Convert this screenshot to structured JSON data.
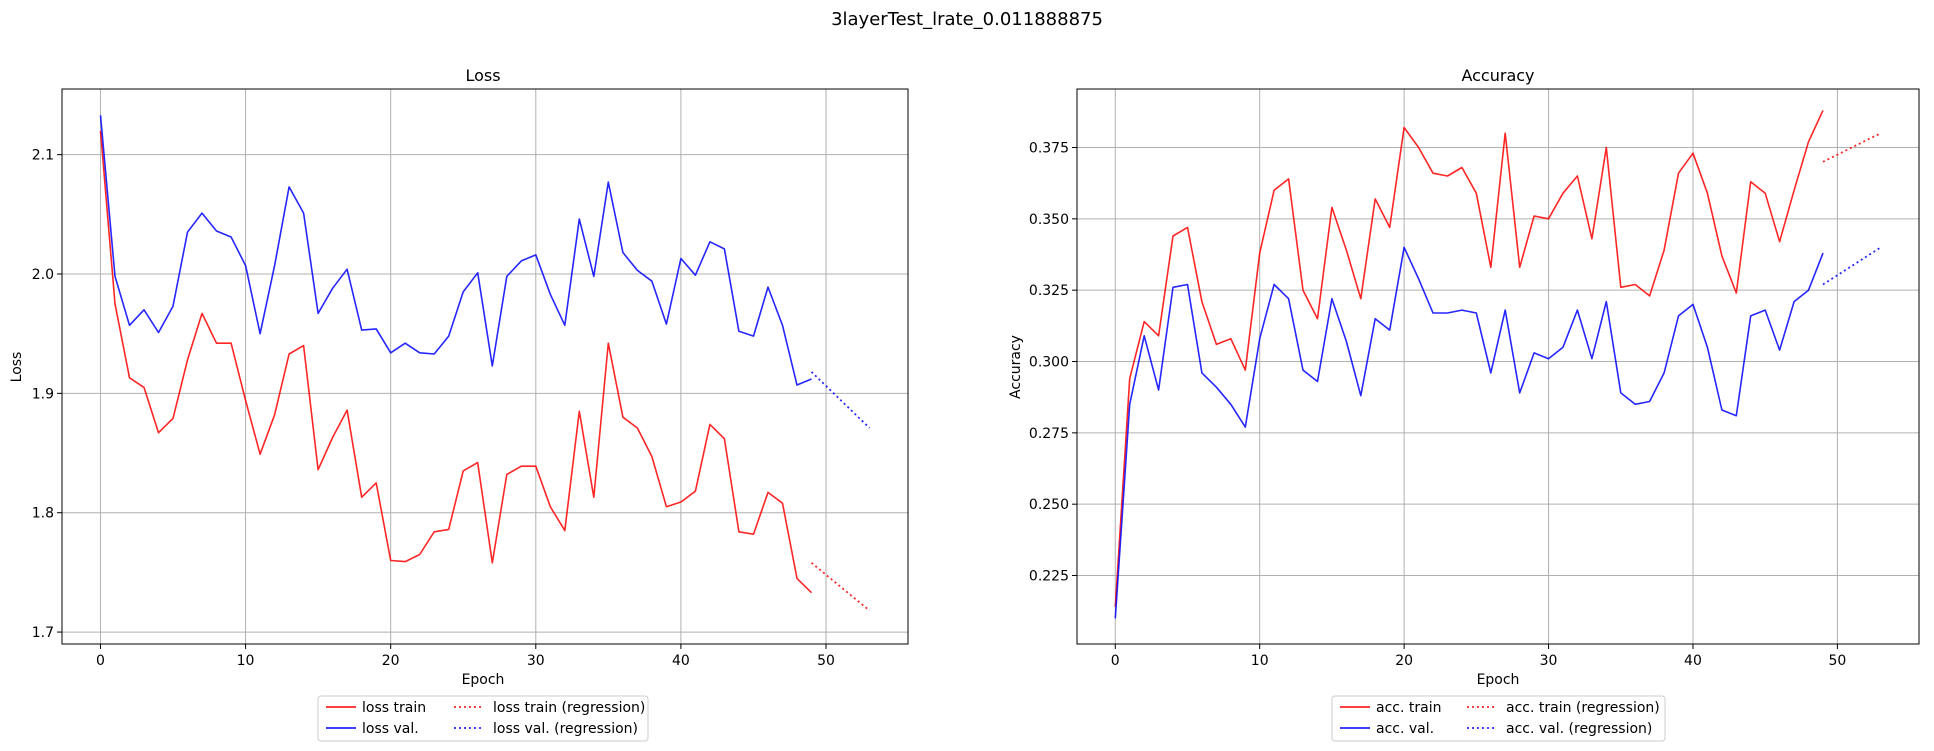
{
  "figure": {
    "suptitle": "3layerTest_lrate_0.011888875"
  },
  "colors": {
    "train": "#ff0000",
    "val": "#0000ff",
    "grid": "#b0b0b0"
  },
  "chart_data": [
    {
      "type": "line",
      "title": "Loss",
      "xlabel": "Epoch",
      "ylabel": "Loss",
      "xlim": [
        -2.65,
        55.65
      ],
      "ylim": [
        1.69,
        2.155
      ],
      "xticks": [
        0,
        10,
        20,
        30,
        40,
        50
      ],
      "yticks": [
        1.7,
        1.8,
        1.9,
        2.0,
        2.1
      ],
      "ytick_labels": [
        "1.7",
        "1.8",
        "1.9",
        "2.0",
        "2.1"
      ],
      "grid": true,
      "legend": {
        "placement": "bottom-center",
        "ncol": 2
      },
      "series": [
        {
          "name": "loss train",
          "color": "#ff0000",
          "style": "solid",
          "x": [
            0,
            1,
            2,
            3,
            4,
            5,
            6,
            7,
            8,
            9,
            10,
            11,
            12,
            13,
            14,
            15,
            16,
            17,
            18,
            19,
            20,
            21,
            22,
            23,
            24,
            25,
            26,
            27,
            28,
            29,
            30,
            31,
            32,
            33,
            34,
            35,
            36,
            37,
            38,
            39,
            40,
            41,
            42,
            43,
            44,
            45,
            46,
            47,
            48,
            49
          ],
          "y": [
            2.12,
            1.975,
            1.913,
            1.905,
            1.867,
            1.879,
            1.928,
            1.967,
            1.942,
            1.942,
            1.894,
            1.849,
            1.882,
            1.933,
            1.94,
            1.836,
            1.863,
            1.886,
            1.813,
            1.825,
            1.76,
            1.759,
            1.765,
            1.784,
            1.786,
            1.835,
            1.842,
            1.758,
            1.832,
            1.839,
            1.839,
            1.805,
            1.785,
            1.885,
            1.813,
            1.942,
            1.88,
            1.871,
            1.847,
            1.805,
            1.809,
            1.818,
            1.874,
            1.862,
            1.784,
            1.782,
            1.817,
            1.808,
            1.745,
            1.733
          ]
        },
        {
          "name": "loss val.",
          "color": "#0000ff",
          "style": "solid",
          "x": [
            0,
            1,
            2,
            3,
            4,
            5,
            6,
            7,
            8,
            9,
            10,
            11,
            12,
            13,
            14,
            15,
            16,
            17,
            18,
            19,
            20,
            21,
            22,
            23,
            24,
            25,
            26,
            27,
            28,
            29,
            30,
            31,
            32,
            33,
            34,
            35,
            36,
            37,
            38,
            39,
            40,
            41,
            42,
            43,
            44,
            45,
            46,
            47,
            48,
            49
          ],
          "y": [
            2.133,
            1.998,
            1.957,
            1.97,
            1.951,
            1.973,
            2.035,
            2.051,
            2.036,
            2.031,
            2.007,
            1.95,
            2.007,
            2.073,
            2.051,
            1.967,
            1.988,
            2.004,
            1.953,
            1.954,
            1.934,
            1.942,
            1.934,
            1.933,
            1.948,
            1.985,
            2.001,
            1.923,
            1.998,
            2.011,
            2.016,
            1.983,
            1.957,
            2.046,
            1.998,
            2.077,
            2.018,
            2.003,
            1.994,
            1.958,
            2.013,
            1.999,
            2.027,
            2.021,
            1.952,
            1.948,
            1.989,
            1.957,
            1.907,
            1.912
          ]
        },
        {
          "name": "loss train (regression)",
          "color": "#ff0000",
          "style": "dotted",
          "x": [
            49,
            53
          ],
          "y": [
            1.758,
            1.718
          ]
        },
        {
          "name": "loss val. (regression)",
          "color": "#0000ff",
          "style": "dotted",
          "x": [
            49,
            53
          ],
          "y": [
            1.918,
            1.871
          ]
        }
      ]
    },
    {
      "type": "line",
      "title": "Accuracy",
      "xlabel": "Epoch",
      "ylabel": "Accuracy",
      "xlim": [
        -2.65,
        55.65
      ],
      "ylim": [
        0.201,
        0.3955
      ],
      "xticks": [
        0,
        10,
        20,
        30,
        40,
        50
      ],
      "yticks": [
        0.225,
        0.25,
        0.275,
        0.3,
        0.325,
        0.35,
        0.375
      ],
      "ytick_labels": [
        "0.225",
        "0.250",
        "0.275",
        "0.300",
        "0.325",
        "0.350",
        "0.375"
      ],
      "grid": true,
      "legend": {
        "placement": "bottom-center",
        "ncol": 2
      },
      "series": [
        {
          "name": "acc. train",
          "color": "#ff0000",
          "style": "solid",
          "x": [
            0,
            1,
            2,
            3,
            4,
            5,
            6,
            7,
            8,
            9,
            10,
            11,
            12,
            13,
            14,
            15,
            16,
            17,
            18,
            19,
            20,
            21,
            22,
            23,
            24,
            25,
            26,
            27,
            28,
            29,
            30,
            31,
            32,
            33,
            34,
            35,
            36,
            37,
            38,
            39,
            40,
            41,
            42,
            43,
            44,
            45,
            46,
            47,
            48,
            49
          ],
          "y": [
            0.214,
            0.294,
            0.314,
            0.309,
            0.344,
            0.347,
            0.321,
            0.306,
            0.308,
            0.297,
            0.338,
            0.36,
            0.364,
            0.325,
            0.315,
            0.354,
            0.339,
            0.322,
            0.357,
            0.347,
            0.382,
            0.375,
            0.366,
            0.365,
            0.368,
            0.359,
            0.333,
            0.38,
            0.333,
            0.351,
            0.35,
            0.359,
            0.365,
            0.343,
            0.375,
            0.326,
            0.327,
            0.323,
            0.339,
            0.366,
            0.373,
            0.359,
            0.337,
            0.324,
            0.363,
            0.359,
            0.342,
            0.36,
            0.377,
            0.388
          ]
        },
        {
          "name": "acc. val.",
          "color": "#0000ff",
          "style": "solid",
          "x": [
            0,
            1,
            2,
            3,
            4,
            5,
            6,
            7,
            8,
            9,
            10,
            11,
            12,
            13,
            14,
            15,
            16,
            17,
            18,
            19,
            20,
            21,
            22,
            23,
            24,
            25,
            26,
            27,
            28,
            29,
            30,
            31,
            32,
            33,
            34,
            35,
            36,
            37,
            38,
            39,
            40,
            41,
            42,
            43,
            44,
            45,
            46,
            47,
            48,
            49
          ],
          "y": [
            0.21,
            0.285,
            0.309,
            0.29,
            0.326,
            0.327,
            0.296,
            0.291,
            0.285,
            0.277,
            0.308,
            0.327,
            0.322,
            0.297,
            0.293,
            0.322,
            0.307,
            0.288,
            0.315,
            0.311,
            0.34,
            0.329,
            0.317,
            0.317,
            0.318,
            0.317,
            0.296,
            0.318,
            0.289,
            0.303,
            0.301,
            0.305,
            0.318,
            0.301,
            0.321,
            0.289,
            0.285,
            0.286,
            0.296,
            0.316,
            0.32,
            0.305,
            0.283,
            0.281,
            0.316,
            0.318,
            0.304,
            0.321,
            0.325,
            0.338
          ]
        },
        {
          "name": "acc. train (regression)",
          "color": "#ff0000",
          "style": "dotted",
          "x": [
            49,
            53
          ],
          "y": [
            0.37,
            0.38
          ]
        },
        {
          "name": "acc. val. (regression)",
          "color": "#0000ff",
          "style": "dotted",
          "x": [
            49,
            53
          ],
          "y": [
            0.327,
            0.34
          ]
        }
      ]
    }
  ]
}
